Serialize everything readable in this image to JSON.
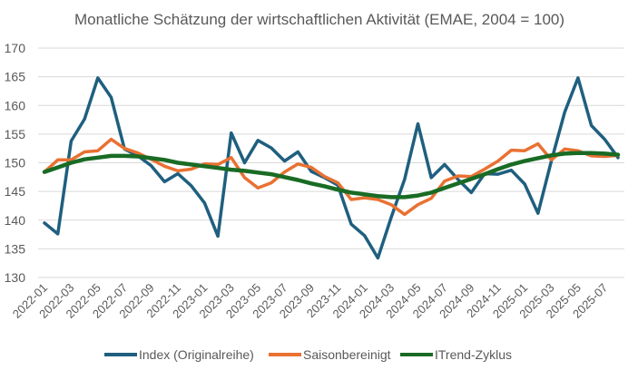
{
  "chart_data": {
    "type": "line",
    "title": "Monatliche Schätzung der wirtschaftlichen Aktivität (EMAE, 2004 = 100)",
    "xlabel": "",
    "ylabel": "",
    "ylim": [
      130,
      170
    ],
    "yticks": [
      130,
      135,
      140,
      145,
      150,
      155,
      160,
      165,
      170
    ],
    "grid": true,
    "legend_position": "bottom",
    "x": [
      "2022-01",
      "2022-02",
      "2022-03",
      "2022-04",
      "2022-05",
      "2022-06",
      "2022-07",
      "2022-08",
      "2022-09",
      "2022-10",
      "2022-11",
      "2022-12",
      "2023-01",
      "2023-02",
      "2023-03",
      "2023-04",
      "2023-05",
      "2023-06",
      "2023-07",
      "2023-08",
      "2023-09",
      "2023-10",
      "2023-11",
      "2023-12",
      "2024-01",
      "2024-02",
      "2024-03",
      "2024-04",
      "2024-05",
      "2024-06",
      "2024-07",
      "2024-08",
      "2024-09",
      "2024-10",
      "2024-11",
      "2024-12",
      "2025-01",
      "2025-02",
      "2025-03",
      "2025-04",
      "2025-05",
      "2025-06",
      "2025-07",
      "2025-08"
    ],
    "xtick_labels": [
      "2022-01",
      "2022-03",
      "2022-05",
      "2022-07",
      "2022-09",
      "2022-11",
      "2023-01",
      "2023-03",
      "2023-05",
      "2023-07",
      "2023-09",
      "2023-11",
      "2024-01",
      "2024-03",
      "2024-05",
      "2024-07",
      "2024-09",
      "2024-11",
      "2025-01",
      "2025-03",
      "2025-05",
      "2025-07"
    ],
    "series": [
      {
        "name": "Index (Originalreihe)",
        "color": "#1f5f7f",
        "values": [
          139.5,
          137.6,
          153.8,
          157.6,
          164.8,
          161.4,
          152.4,
          151.2,
          149.5,
          146.7,
          148.1,
          146.0,
          143.0,
          137.2,
          155.2,
          150.0,
          153.9,
          152.6,
          150.3,
          151.9,
          148.5,
          147.4,
          146.1,
          139.3,
          137.3,
          133.4,
          140.5,
          147.1,
          156.8,
          147.4,
          149.7,
          147.1,
          144.8,
          148.1,
          148.0,
          148.7,
          146.3,
          141.2,
          150.3,
          158.8,
          164.8,
          156.5,
          154.1,
          150.9
        ]
      },
      {
        "name": "Saisonbereinigt",
        "color": "#e97132",
        "values": [
          148.4,
          150.5,
          150.5,
          151.9,
          152.1,
          154.1,
          152.5,
          151.7,
          150.6,
          149.4,
          148.6,
          148.9,
          149.8,
          149.7,
          150.9,
          147.4,
          145.6,
          146.5,
          148.4,
          149.8,
          149.2,
          147.6,
          146.5,
          143.6,
          143.9,
          143.6,
          142.7,
          141.0,
          142.7,
          143.8,
          146.8,
          147.7,
          147.6,
          148.9,
          150.3,
          152.2,
          152.1,
          153.3,
          150.5,
          152.4,
          152.1,
          151.2,
          151.1,
          151.3
        ]
      },
      {
        "name": "ITrend-Zyklus",
        "color": "#196b24",
        "values": [
          148.4,
          149.2,
          150.0,
          150.6,
          150.9,
          151.2,
          151.2,
          151.1,
          150.8,
          150.5,
          150.0,
          149.7,
          149.4,
          149.1,
          148.8,
          148.6,
          148.3,
          148.0,
          147.5,
          147.0,
          146.4,
          145.9,
          145.3,
          144.8,
          144.5,
          144.2,
          144.0,
          144.0,
          144.3,
          144.8,
          145.6,
          146.4,
          147.2,
          148.0,
          148.9,
          149.7,
          150.3,
          150.8,
          151.3,
          151.6,
          151.7,
          151.7,
          151.6,
          151.4
        ]
      }
    ]
  }
}
